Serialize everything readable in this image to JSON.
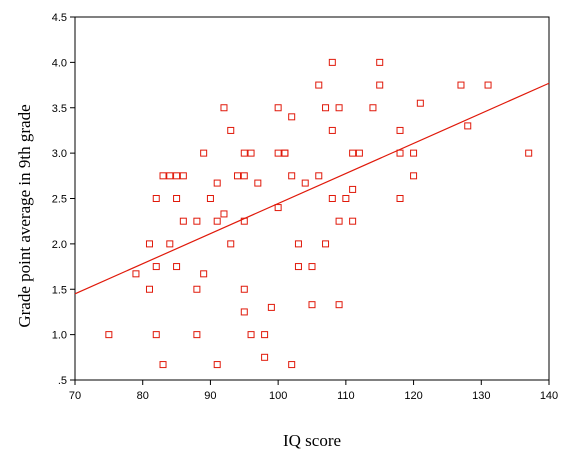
{
  "chart_data": {
    "type": "scatter",
    "title": "",
    "xlabel": "IQ score",
    "ylabel": "Grade point average in 9th grade",
    "xlim": [
      70,
      140
    ],
    "ylim": [
      0.5,
      4.5
    ],
    "xticks": [
      70,
      80,
      90,
      100,
      110,
      120,
      130,
      140
    ],
    "yticks": [
      0.5,
      1.0,
      1.5,
      2.0,
      2.5,
      3.0,
      3.5,
      4.0,
      4.5
    ],
    "xtick_labels": [
      "70",
      "80",
      "90",
      "100",
      "110",
      "120",
      "130",
      "140"
    ],
    "ytick_labels": [
      ".5",
      "1.0",
      "1.5",
      "2.0",
      "2.5",
      "3.0",
      "3.5",
      "4.0",
      "4.5"
    ],
    "grid": false,
    "marker": "open-square",
    "color": "#e0190a",
    "fit_line": {
      "x": [
        70,
        140
      ],
      "y": [
        1.45,
        3.77
      ]
    },
    "points": [
      [
        75,
        1.0
      ],
      [
        79,
        1.67
      ],
      [
        81,
        2.0
      ],
      [
        81,
        1.5
      ],
      [
        82,
        2.5
      ],
      [
        82,
        1.75
      ],
      [
        82,
        1.0
      ],
      [
        83,
        2.75
      ],
      [
        83,
        0.67
      ],
      [
        84,
        2.75
      ],
      [
        84,
        2.0
      ],
      [
        85,
        2.75
      ],
      [
        85,
        2.5
      ],
      [
        85,
        1.75
      ],
      [
        86,
        2.75
      ],
      [
        86,
        2.25
      ],
      [
        88,
        2.25
      ],
      [
        88,
        1.5
      ],
      [
        88,
        1.0
      ],
      [
        89,
        3.0
      ],
      [
        89,
        1.67
      ],
      [
        90,
        2.5
      ],
      [
        91,
        2.67
      ],
      [
        91,
        2.25
      ],
      [
        91,
        0.67
      ],
      [
        92,
        3.5
      ],
      [
        92,
        2.33
      ],
      [
        93,
        3.25
      ],
      [
        93,
        2.0
      ],
      [
        94,
        2.75
      ],
      [
        95,
        3.0
      ],
      [
        95,
        2.75
      ],
      [
        95,
        2.25
      ],
      [
        95,
        1.5
      ],
      [
        95,
        1.25
      ],
      [
        96,
        3.0
      ],
      [
        96,
        1.0
      ],
      [
        97,
        2.67
      ],
      [
        98,
        1.0
      ],
      [
        98,
        0.75
      ],
      [
        99,
        1.3
      ],
      [
        100,
        3.5
      ],
      [
        100,
        3.0
      ],
      [
        100,
        2.4
      ],
      [
        101,
        3.0
      ],
      [
        101,
        3.0
      ],
      [
        102,
        3.4
      ],
      [
        102,
        2.75
      ],
      [
        102,
        0.67
      ],
      [
        103,
        2.0
      ],
      [
        103,
        1.75
      ],
      [
        104,
        2.67
      ],
      [
        105,
        1.75
      ],
      [
        105,
        1.33
      ],
      [
        106,
        3.75
      ],
      [
        106,
        2.75
      ],
      [
        107,
        3.5
      ],
      [
        107,
        2.0
      ],
      [
        108,
        4.0
      ],
      [
        108,
        3.25
      ],
      [
        108,
        2.5
      ],
      [
        109,
        3.5
      ],
      [
        109,
        2.25
      ],
      [
        109,
        1.33
      ],
      [
        110,
        2.5
      ],
      [
        111,
        3.0
      ],
      [
        111,
        2.6
      ],
      [
        111,
        2.25
      ],
      [
        112,
        3.0
      ],
      [
        114,
        3.5
      ],
      [
        115,
        4.0
      ],
      [
        115,
        3.75
      ],
      [
        118,
        3.25
      ],
      [
        118,
        3.0
      ],
      [
        118,
        2.5
      ],
      [
        120,
        3.0
      ],
      [
        120,
        2.75
      ],
      [
        121,
        3.55
      ],
      [
        127,
        3.75
      ],
      [
        128,
        3.3
      ],
      [
        131,
        3.75
      ],
      [
        137,
        3.0
      ]
    ]
  }
}
